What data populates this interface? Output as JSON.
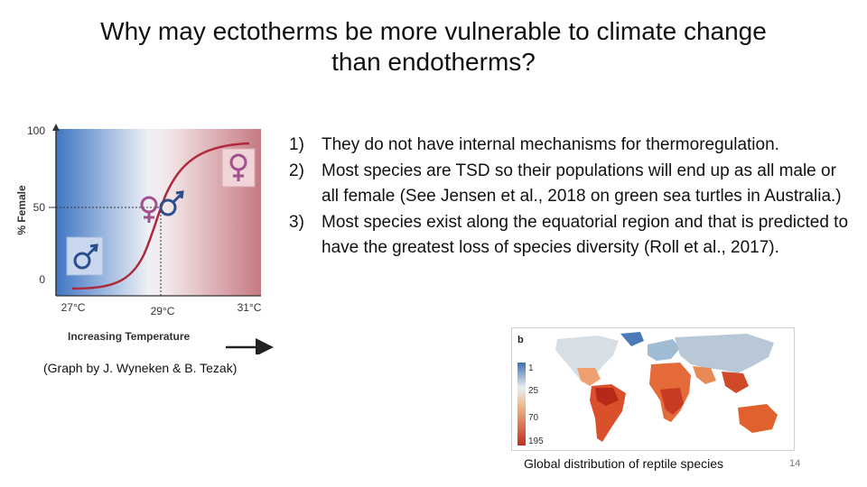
{
  "slide": {
    "title_line1": "Why may ectotherms be more vulnerable to climate change",
    "title_line2": "than endotherms?",
    "page_number": "14"
  },
  "graph": {
    "y_axis_label": "% Female",
    "y_ticks": [
      "100",
      "50",
      "0"
    ],
    "x_ticks": [
      "27°C",
      "29°C",
      "31°C"
    ],
    "x_axis_label": "Increasing Temperature",
    "credit": "(Graph by J. Wyneken & B. Tezak)",
    "colors": {
      "cool": "#4a7fc9",
      "warm": "#c97a80",
      "curve": "#b0283c"
    },
    "icons": [
      "male-symbol-icon",
      "female-symbol-icon",
      "female-male-symbol-icon"
    ]
  },
  "points": [
    {
      "num": "1)",
      "text": "They do not have internal mechanisms for thermoregulation."
    },
    {
      "num": "2)",
      "text": "Most species are TSD so their populations will end up as all male or all female (See Jensen et al., 2018 on green sea turtles in Australia.)"
    },
    {
      "num": "3)",
      "text": "Most species exist along the equatorial region and that is predicted to have the greatest loss of species diversity (Roll et al., 2017)."
    }
  ],
  "map": {
    "panel_label": "b",
    "legend_values": [
      "1",
      "25",
      "70",
      "195"
    ],
    "caption": "Global distribution of reptile species"
  }
}
